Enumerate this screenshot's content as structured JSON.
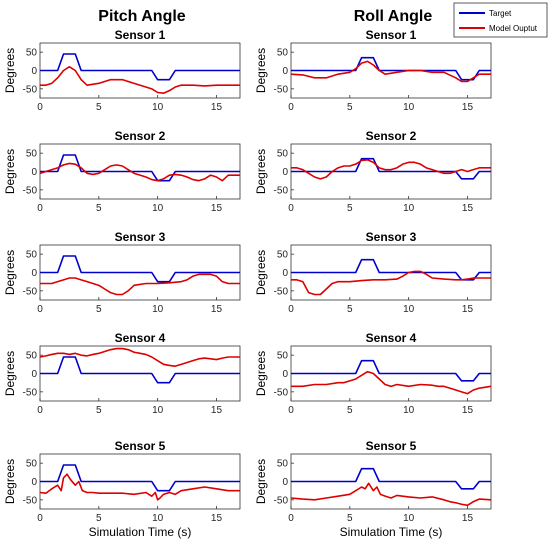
{
  "colors": {
    "target": "#0000cc",
    "model_output": "#dd0000",
    "axes": "#333333"
  },
  "legend": {
    "placement": "top-right",
    "target_label": "Target",
    "model_label": "Model Ouptut"
  },
  "column_titles": [
    "Pitch Angle",
    "Roll Angle"
  ],
  "shared_xlabel": "Simulation Time (s)",
  "shared_ylabel": "Degrees",
  "chart_data": [
    {
      "type": "line",
      "group": "Pitch Angle",
      "title": "Sensor 1",
      "ylabel": "Degrees",
      "xlabel": "",
      "xlim": [
        0,
        17
      ],
      "ylim": [
        -75,
        75
      ],
      "xticks": [
        0,
        5,
        10,
        15
      ],
      "yticks": [
        -50,
        0,
        50
      ],
      "grid": false,
      "series": [
        {
          "name": "Target",
          "x": [
            0,
            1.5,
            2,
            3,
            3.5,
            5,
            9.5,
            10,
            11,
            11.5,
            17
          ],
          "y": [
            0,
            0,
            45,
            45,
            0,
            0,
            0,
            -25,
            -25,
            0,
            0
          ]
        },
        {
          "name": "Model Ouptut",
          "x": [
            0,
            0.5,
            1,
            1.5,
            2,
            2.5,
            3,
            3.5,
            4,
            5,
            6,
            7,
            8,
            9,
            9.5,
            10,
            10.5,
            11,
            11.5,
            12,
            13,
            14,
            15,
            16,
            17
          ],
          "y": [
            -40,
            -40,
            -35,
            -20,
            0,
            10,
            0,
            -25,
            -40,
            -35,
            -25,
            -25,
            -35,
            -45,
            -50,
            -60,
            -62,
            -55,
            -45,
            -40,
            -40,
            -42,
            -40,
            -40,
            -40
          ]
        }
      ]
    },
    {
      "type": "line",
      "group": "Roll Angle",
      "title": "Sensor 1",
      "ylabel": "Degrees",
      "xlabel": "",
      "xlim": [
        0,
        17
      ],
      "ylim": [
        -75,
        75
      ],
      "xticks": [
        0,
        5,
        10,
        15
      ],
      "yticks": [
        -50,
        0,
        50
      ],
      "grid": false,
      "series": [
        {
          "name": "Target",
          "x": [
            0,
            5.5,
            6,
            7,
            7.5,
            14,
            14.5,
            15.5,
            16,
            17
          ],
          "y": [
            0,
            0,
            35,
            35,
            0,
            0,
            -25,
            -25,
            0,
            0
          ]
        },
        {
          "name": "Model Ouptut",
          "x": [
            0,
            1,
            2,
            3,
            4,
            5,
            5.5,
            6,
            6.5,
            7,
            7.5,
            8,
            9,
            10,
            11,
            12,
            13,
            14,
            14.5,
            15,
            15.5,
            16,
            17
          ],
          "y": [
            -10,
            -12,
            -20,
            -20,
            -10,
            -5,
            5,
            20,
            25,
            15,
            0,
            -10,
            -5,
            0,
            0,
            -5,
            -5,
            -20,
            -30,
            -30,
            -20,
            -10,
            -10
          ]
        }
      ]
    },
    {
      "type": "line",
      "group": "Pitch Angle",
      "title": "Sensor 2",
      "ylabel": "Degrees",
      "xlabel": "",
      "xlim": [
        0,
        17
      ],
      "ylim": [
        -75,
        75
      ],
      "xticks": [
        0,
        5,
        10,
        15
      ],
      "yticks": [
        -50,
        0,
        50
      ],
      "grid": false,
      "series": [
        {
          "name": "Target",
          "x": [
            0,
            1.5,
            2,
            3,
            3.5,
            9.5,
            10,
            11,
            11.5,
            17
          ],
          "y": [
            0,
            0,
            45,
            45,
            0,
            0,
            -25,
            -25,
            0,
            0
          ]
        },
        {
          "name": "Model Ouptut",
          "x": [
            0,
            0.5,
            1,
            1.5,
            2,
            2.5,
            3,
            3.5,
            4,
            4.5,
            5,
            5.5,
            6,
            6.5,
            7,
            7.5,
            8,
            8.5,
            9,
            9.5,
            10,
            10.5,
            11,
            11.5,
            12,
            12.5,
            13,
            13.5,
            14,
            14.5,
            15,
            15.5,
            16,
            17
          ],
          "y": [
            -5,
            0,
            5,
            10,
            18,
            22,
            20,
            10,
            -5,
            -8,
            -5,
            5,
            15,
            18,
            15,
            5,
            -5,
            -10,
            -15,
            -22,
            -25,
            -20,
            -10,
            -8,
            -10,
            -15,
            -22,
            -25,
            -20,
            -10,
            -15,
            -25,
            -10,
            -10
          ]
        }
      ]
    },
    {
      "type": "line",
      "group": "Roll Angle",
      "title": "Sensor 2",
      "ylabel": "Degrees",
      "xlabel": "",
      "xlim": [
        0,
        17
      ],
      "ylim": [
        -75,
        75
      ],
      "xticks": [
        0,
        5,
        10,
        15
      ],
      "yticks": [
        -50,
        0,
        50
      ],
      "grid": false,
      "series": [
        {
          "name": "Target",
          "x": [
            0,
            5.5,
            6,
            7,
            7.5,
            14,
            14.5,
            15.5,
            16,
            17
          ],
          "y": [
            0,
            0,
            35,
            35,
            0,
            0,
            -20,
            -20,
            0,
            0
          ]
        },
        {
          "name": "Model Ouptut",
          "x": [
            0,
            0.5,
            1,
            1.5,
            2,
            2.5,
            3,
            3.5,
            4,
            4.5,
            5,
            5.5,
            6,
            6.5,
            7,
            7.5,
            8,
            8.5,
            9,
            9.5,
            10,
            10.5,
            11,
            11.5,
            12,
            12.5,
            13,
            13.5,
            14,
            14.5,
            15,
            15.5,
            16,
            17
          ],
          "y": [
            10,
            10,
            5,
            -5,
            -15,
            -20,
            -15,
            0,
            10,
            15,
            15,
            20,
            30,
            32,
            25,
            10,
            5,
            5,
            10,
            20,
            25,
            25,
            20,
            10,
            5,
            0,
            -5,
            -5,
            0,
            5,
            0,
            5,
            10,
            10
          ]
        }
      ]
    },
    {
      "type": "line",
      "group": "Pitch Angle",
      "title": "Sensor 3",
      "ylabel": "Degrees",
      "xlabel": "",
      "xlim": [
        0,
        17
      ],
      "ylim": [
        -75,
        75
      ],
      "xticks": [
        0,
        5,
        10,
        15
      ],
      "yticks": [
        -50,
        0,
        50
      ],
      "grid": false,
      "series": [
        {
          "name": "Target",
          "x": [
            0,
            1.5,
            2,
            3,
            3.5,
            9.5,
            10,
            11,
            11.5,
            17
          ],
          "y": [
            0,
            0,
            45,
            45,
            0,
            0,
            -25,
            -25,
            0,
            0
          ]
        },
        {
          "name": "Model Ouptut",
          "x": [
            0,
            1,
            1.5,
            2,
            2.5,
            3,
            3.5,
            4,
            4.5,
            5,
            5.5,
            6,
            6.5,
            7,
            7.5,
            8,
            9,
            10,
            11,
            12,
            12.5,
            13,
            13.5,
            14,
            14.5,
            15,
            15.5,
            16,
            17
          ],
          "y": [
            -30,
            -30,
            -25,
            -20,
            -15,
            -15,
            -20,
            -25,
            -30,
            -35,
            -45,
            -55,
            -60,
            -60,
            -50,
            -35,
            -30,
            -30,
            -28,
            -25,
            -20,
            -10,
            -5,
            -5,
            -5,
            -10,
            -25,
            -30,
            -30
          ]
        }
      ]
    },
    {
      "type": "line",
      "group": "Roll Angle",
      "title": "Sensor 3",
      "ylabel": "Degrees",
      "xlabel": "",
      "xlim": [
        0,
        17
      ],
      "ylim": [
        -75,
        75
      ],
      "xticks": [
        0,
        5,
        10,
        15
      ],
      "yticks": [
        -50,
        0,
        50
      ],
      "grid": false,
      "series": [
        {
          "name": "Target",
          "x": [
            0,
            5.5,
            6,
            7,
            7.5,
            14,
            14.5,
            15.5,
            16,
            17
          ],
          "y": [
            0,
            0,
            35,
            35,
            0,
            0,
            -20,
            -20,
            0,
            0
          ]
        },
        {
          "name": "Model Ouptut",
          "x": [
            0,
            0.5,
            1,
            1.5,
            2,
            2.5,
            3,
            3.5,
            4,
            5,
            6,
            7,
            8,
            9,
            9.5,
            10,
            10.5,
            11,
            11.5,
            12,
            13,
            14,
            14.5,
            15,
            15.5,
            16,
            17
          ],
          "y": [
            -20,
            -20,
            -25,
            -55,
            -60,
            -60,
            -45,
            -30,
            -25,
            -25,
            -22,
            -20,
            -20,
            -18,
            -10,
            0,
            3,
            3,
            -5,
            -15,
            -18,
            -20,
            -20,
            -18,
            -15,
            -15,
            -15
          ]
        }
      ]
    },
    {
      "type": "line",
      "group": "Pitch Angle",
      "title": "Sensor 4",
      "ylabel": "Degrees",
      "xlabel": "",
      "xlim": [
        0,
        17
      ],
      "ylim": [
        -75,
        75
      ],
      "xticks": [
        0,
        5,
        10,
        15
      ],
      "yticks": [
        -50,
        0,
        50
      ],
      "grid": false,
      "series": [
        {
          "name": "Target",
          "x": [
            0,
            1.5,
            2,
            3,
            3.5,
            9.5,
            10,
            11,
            11.5,
            17
          ],
          "y": [
            0,
            0,
            45,
            45,
            0,
            0,
            -25,
            -25,
            0,
            0
          ]
        },
        {
          "name": "Model Ouptut",
          "x": [
            0,
            0.5,
            1,
            1.5,
            2,
            2.5,
            3,
            3.5,
            4,
            4.5,
            5,
            5.5,
            6,
            6.5,
            7,
            7.5,
            8,
            8.5,
            9,
            9.5,
            10,
            10.5,
            11,
            11.5,
            12,
            12.5,
            13,
            13.5,
            14,
            14.5,
            15,
            15.5,
            16,
            17
          ],
          "y": [
            45,
            48,
            52,
            55,
            55,
            52,
            55,
            50,
            48,
            52,
            55,
            60,
            65,
            68,
            68,
            65,
            58,
            55,
            52,
            45,
            35,
            25,
            22,
            20,
            25,
            30,
            35,
            40,
            42,
            40,
            38,
            42,
            45,
            45
          ]
        }
      ]
    },
    {
      "type": "line",
      "group": "Roll Angle",
      "title": "Sensor 4",
      "ylabel": "Degrees",
      "xlabel": "",
      "xlim": [
        0,
        17
      ],
      "ylim": [
        -75,
        75
      ],
      "xticks": [
        0,
        5,
        10,
        15
      ],
      "yticks": [
        -50,
        0,
        50
      ],
      "grid": false,
      "series": [
        {
          "name": "Target",
          "x": [
            0,
            5.5,
            6,
            7,
            7.5,
            14,
            14.5,
            15.5,
            16,
            17
          ],
          "y": [
            0,
            0,
            35,
            35,
            0,
            0,
            -20,
            -20,
            0,
            0
          ]
        },
        {
          "name": "Model Ouptut",
          "x": [
            0,
            1,
            2,
            3,
            4,
            4.5,
            5,
            5.5,
            6,
            6.5,
            7,
            7.5,
            8,
            8.5,
            9,
            10,
            11,
            12,
            12.5,
            13,
            13.5,
            14,
            14.5,
            15,
            15.5,
            16,
            17
          ],
          "y": [
            -35,
            -35,
            -30,
            -30,
            -25,
            -25,
            -20,
            -15,
            -5,
            5,
            0,
            -15,
            -30,
            -35,
            -30,
            -35,
            -30,
            -32,
            -35,
            -35,
            -40,
            -45,
            -50,
            -55,
            -45,
            -40,
            -35
          ]
        }
      ]
    },
    {
      "type": "line",
      "group": "Pitch Angle",
      "title": "Sensor 5",
      "ylabel": "Degrees",
      "xlabel": "Simulation Time (s)",
      "xlim": [
        0,
        17
      ],
      "ylim": [
        -75,
        75
      ],
      "xticks": [
        0,
        5,
        10,
        15
      ],
      "yticks": [
        -50,
        0,
        50
      ],
      "grid": false,
      "series": [
        {
          "name": "Target",
          "x": [
            0,
            1.5,
            2,
            3,
            3.5,
            9.5,
            10,
            11,
            11.5,
            17
          ],
          "y": [
            0,
            0,
            45,
            45,
            0,
            0,
            -25,
            -25,
            0,
            0
          ]
        },
        {
          "name": "Model Ouptut",
          "x": [
            0,
            0.5,
            1,
            1.5,
            1.8,
            2,
            2.3,
            2.6,
            3,
            3.3,
            3.6,
            4,
            4.5,
            5,
            6,
            7,
            8,
            9,
            9.5,
            9.8,
            10,
            10.2,
            10.5,
            11,
            11.5,
            12,
            13,
            14,
            15,
            16,
            17
          ],
          "y": [
            -30,
            -32,
            -20,
            -10,
            -25,
            10,
            20,
            5,
            -10,
            0,
            -25,
            -30,
            -30,
            -32,
            -32,
            -32,
            -35,
            -30,
            -40,
            -30,
            -50,
            -45,
            -35,
            -30,
            -35,
            -25,
            -20,
            -15,
            -20,
            -25,
            -25
          ]
        }
      ]
    },
    {
      "type": "line",
      "group": "Roll Angle",
      "title": "Sensor 5",
      "ylabel": "Degrees",
      "xlabel": "Simulation Time (s)",
      "xlim": [
        0,
        17
      ],
      "ylim": [
        -75,
        75
      ],
      "xticks": [
        0,
        5,
        10,
        15
      ],
      "yticks": [
        -50,
        0,
        50
      ],
      "grid": false,
      "series": [
        {
          "name": "Target",
          "x": [
            0,
            5.5,
            6,
            7,
            7.5,
            14,
            14.5,
            15.5,
            16,
            17
          ],
          "y": [
            0,
            0,
            35,
            35,
            0,
            0,
            -20,
            -20,
            0,
            0
          ]
        },
        {
          "name": "Model Ouptut",
          "x": [
            0,
            1,
            2,
            3,
            4,
            5,
            5.5,
            6,
            6.3,
            6.6,
            7,
            7.3,
            7.6,
            8,
            8.5,
            9,
            10,
            11,
            12,
            13,
            13.5,
            14,
            14.5,
            15,
            15.5,
            16,
            17
          ],
          "y": [
            -45,
            -48,
            -50,
            -45,
            -40,
            -35,
            -25,
            -15,
            -20,
            -5,
            -25,
            -15,
            -35,
            -40,
            -45,
            -38,
            -42,
            -45,
            -42,
            -50,
            -55,
            -58,
            -62,
            -65,
            -55,
            -48,
            -50
          ]
        }
      ]
    }
  ]
}
